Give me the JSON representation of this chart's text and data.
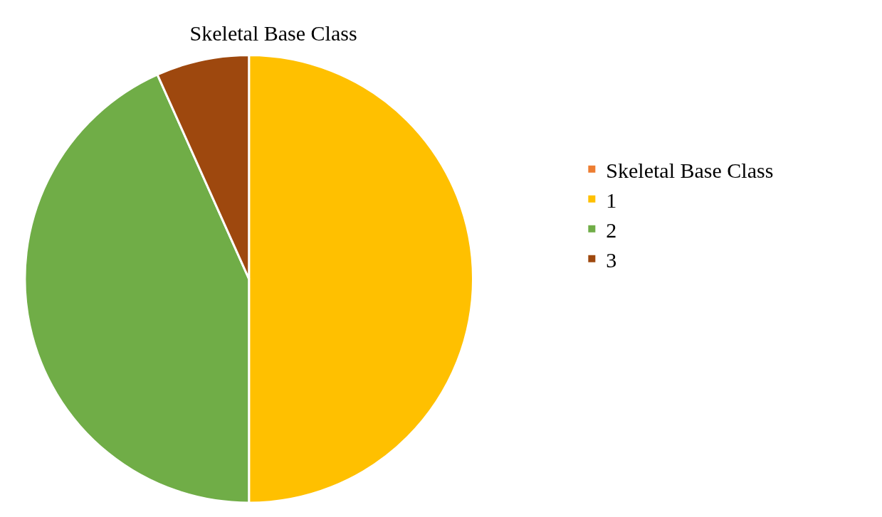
{
  "chart_data": {
    "type": "pie",
    "title": "Skeletal Base Class",
    "categories": [
      "Skeletal Base Class",
      "1",
      "2",
      "3"
    ],
    "values": [
      0,
      50,
      43.3,
      6.7
    ],
    "colors": [
      "#ed7d31",
      "#ffc000",
      "#70ad47",
      "#9e480e"
    ],
    "legend": "right"
  }
}
